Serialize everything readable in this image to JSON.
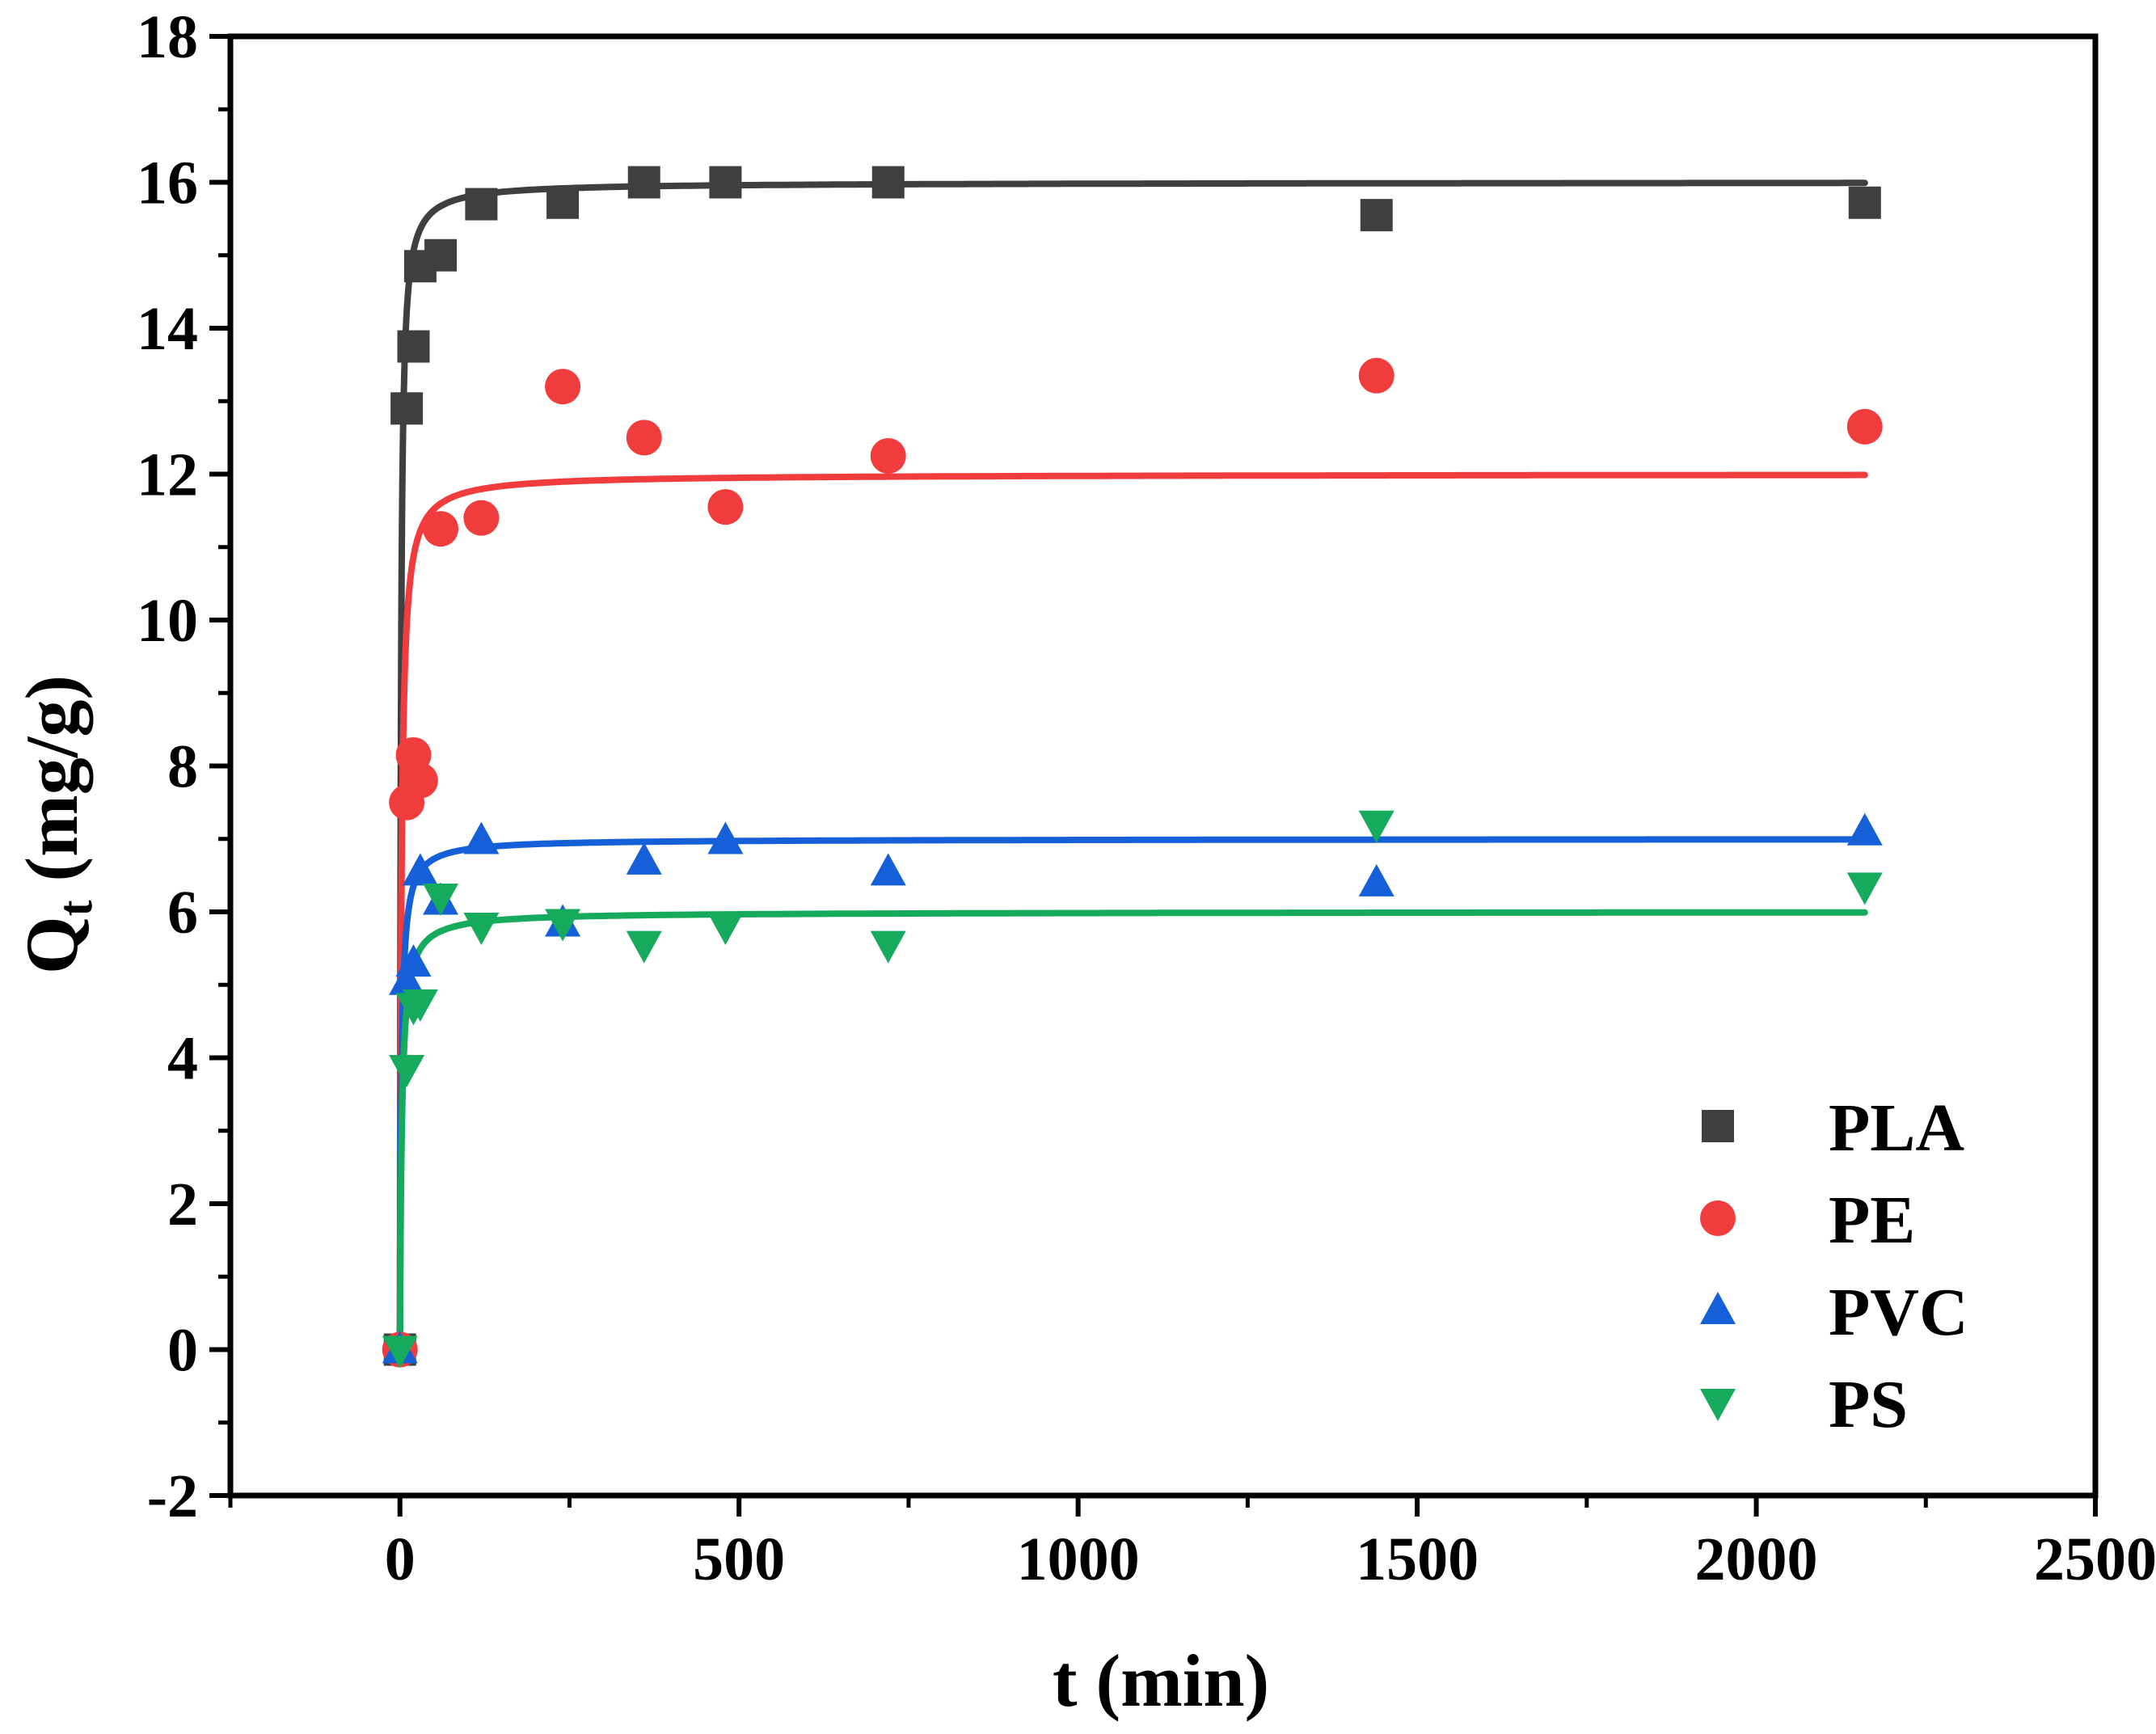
{
  "chart_data": {
    "type": "scatter",
    "title": "",
    "xlabel": "t  (min)",
    "ylabel_main": "Q",
    "ylabel_sub": "t",
    "ylabel_unit": "  (mg/g)",
    "xlim": [
      -250,
      2500
    ],
    "ylim": [
      -2,
      18
    ],
    "xticks": [
      0,
      500,
      1000,
      1500,
      2000,
      2500
    ],
    "xtick_labels": [
      "0",
      "500",
      "1000",
      "1500",
      "2000",
      "2500"
    ],
    "yticks": [
      -2,
      0,
      2,
      4,
      6,
      8,
      10,
      12,
      14,
      16,
      18
    ],
    "ytick_labels": [
      "-2",
      "0",
      "2",
      "4",
      "6",
      "8",
      "10",
      "12",
      "14",
      "16",
      "18"
    ],
    "legend_position": "bottom-right",
    "series": [
      {
        "name": "PLA",
        "color": "#3f3f3f",
        "marker": "square",
        "x": [
          0,
          10,
          20,
          30,
          60,
          120,
          240,
          360,
          480,
          720,
          1440,
          2160
        ],
        "y": [
          0,
          12.9,
          13.75,
          14.85,
          15.0,
          15.7,
          15.72,
          16.0,
          16.0,
          16.0,
          15.55,
          15.72
        ],
        "fit": {
          "model": "pseudo-second-order",
          "qe": 16.0,
          "k": 0.05,
          "tmax": 2160
        }
      },
      {
        "name": "PE",
        "color": "#f03c3c",
        "marker": "circle",
        "x": [
          0,
          10,
          20,
          30,
          60,
          120,
          240,
          360,
          480,
          720,
          1440,
          2160
        ],
        "y": [
          0,
          7.5,
          8.15,
          7.8,
          11.25,
          11.4,
          13.2,
          12.5,
          11.55,
          12.25,
          13.35,
          12.65
        ],
        "fit": {
          "model": "pseudo-second-order",
          "qe": 12.0,
          "k": 0.04,
          "tmax": 2160
        }
      },
      {
        "name": "PVC",
        "color": "#1560d8",
        "marker": "triangle-up",
        "x": [
          0,
          10,
          20,
          30,
          60,
          120,
          240,
          360,
          480,
          720,
          1440,
          2160
        ],
        "y": [
          0,
          5.05,
          5.3,
          6.55,
          6.15,
          6.98,
          5.85,
          6.7,
          6.98,
          6.55,
          6.4,
          7.1
        ],
        "fit": {
          "model": "pseudo-second-order",
          "qe": 7.0,
          "k": 0.07,
          "tmax": 2160
        }
      },
      {
        "name": "PS",
        "color": "#16aa5c",
        "marker": "triangle-down",
        "x": [
          0,
          10,
          20,
          30,
          60,
          120,
          240,
          360,
          480,
          720,
          1440,
          2160
        ],
        "y": [
          0,
          3.85,
          4.7,
          4.75,
          6.2,
          5.8,
          5.85,
          5.55,
          5.8,
          5.55,
          7.2,
          6.35
        ],
        "fit": {
          "model": "pseudo-second-order",
          "qe": 6.0,
          "k": 0.06,
          "tmax": 2160
        }
      }
    ]
  }
}
